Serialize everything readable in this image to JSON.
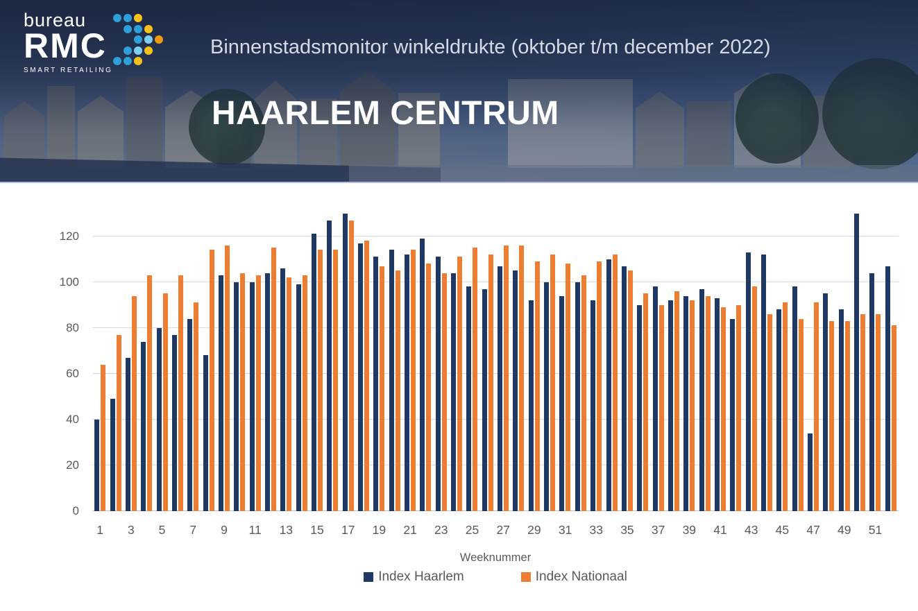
{
  "header": {
    "logo": {
      "word1": "bureau",
      "word2": "RMC",
      "tagline": "SMART RETAILING",
      "dots": {
        "rows": [
          {
            "offset": 0,
            "colors": [
              "#2E9FD8",
              "#2E9FD8",
              "#F8C11C"
            ]
          },
          {
            "offset": 1,
            "colors": [
              "#2E9FD8",
              "#2E9FD8",
              "#F8C11C"
            ]
          },
          {
            "offset": 2,
            "colors": [
              "#2E9FD8",
              "#7CCFF0",
              "#F2980F"
            ]
          },
          {
            "offset": 1,
            "colors": [
              "#2E9FD8",
              "#7CCFF0",
              "#F8C11C"
            ]
          },
          {
            "offset": 0,
            "colors": [
              "#2E9FD8",
              "#2E9FD8",
              "#F8C11C"
            ]
          }
        ]
      }
    },
    "subtitle": "Binnenstadsmonitor winkeldrukte (oktober t/m december 2022)",
    "title": "HAARLEM CENTRUM"
  },
  "colors": {
    "haarlem_bar": "#1F3864",
    "nationaal_bar": "#ED7D31",
    "gridline": "#D9D9D9",
    "axis_text": "#595959"
  },
  "chart_data": {
    "type": "bar",
    "title": "",
    "xlabel": "Weeknummer",
    "ylabel": "",
    "categories": [
      1,
      2,
      3,
      4,
      5,
      6,
      7,
      8,
      9,
      10,
      11,
      12,
      13,
      14,
      15,
      16,
      17,
      18,
      19,
      20,
      21,
      22,
      23,
      24,
      25,
      26,
      27,
      28,
      29,
      30,
      31,
      32,
      33,
      34,
      35,
      36,
      37,
      38,
      39,
      40,
      41,
      42,
      43,
      44,
      45,
      46,
      47,
      48,
      49,
      50,
      51,
      52
    ],
    "x_tick_labels": [
      "1",
      "3",
      "5",
      "7",
      "9",
      "11",
      "13",
      "15",
      "17",
      "19",
      "21",
      "23",
      "25",
      "27",
      "29",
      "31",
      "33",
      "35",
      "37",
      "39",
      "41",
      "43",
      "45",
      "47",
      "49",
      "51"
    ],
    "yticks": [
      0,
      20,
      40,
      60,
      80,
      100,
      120
    ],
    "ylim": [
      0,
      132
    ],
    "grid": true,
    "legend_position": "bottom",
    "series": [
      {
        "name": "Index Haarlem",
        "color": "#1F3864",
        "values": [
          40,
          49,
          67,
          74,
          80,
          77,
          84,
          68,
          103,
          100,
          100,
          104,
          106,
          99,
          121,
          127,
          130,
          117,
          111,
          114,
          112,
          119,
          111,
          104,
          98,
          97,
          107,
          105,
          92,
          100,
          94,
          100,
          92,
          110,
          107,
          90,
          98,
          92,
          94,
          97,
          93,
          84,
          113,
          112,
          88,
          98,
          34,
          95,
          88,
          130,
          104,
          107
        ]
      },
      {
        "name": "Index Nationaal",
        "color": "#ED7D31",
        "values": [
          64,
          77,
          94,
          103,
          95,
          103,
          91,
          114,
          116,
          104,
          103,
          115,
          102,
          103,
          114,
          114,
          127,
          118,
          107,
          105,
          114,
          108,
          104,
          111,
          115,
          112,
          116,
          116,
          109,
          112,
          108,
          103,
          109,
          112,
          105,
          95,
          90,
          96,
          92,
          94,
          89,
          90,
          98,
          86,
          91,
          84,
          91,
          83,
          83,
          86,
          86,
          81
        ]
      }
    ]
  }
}
